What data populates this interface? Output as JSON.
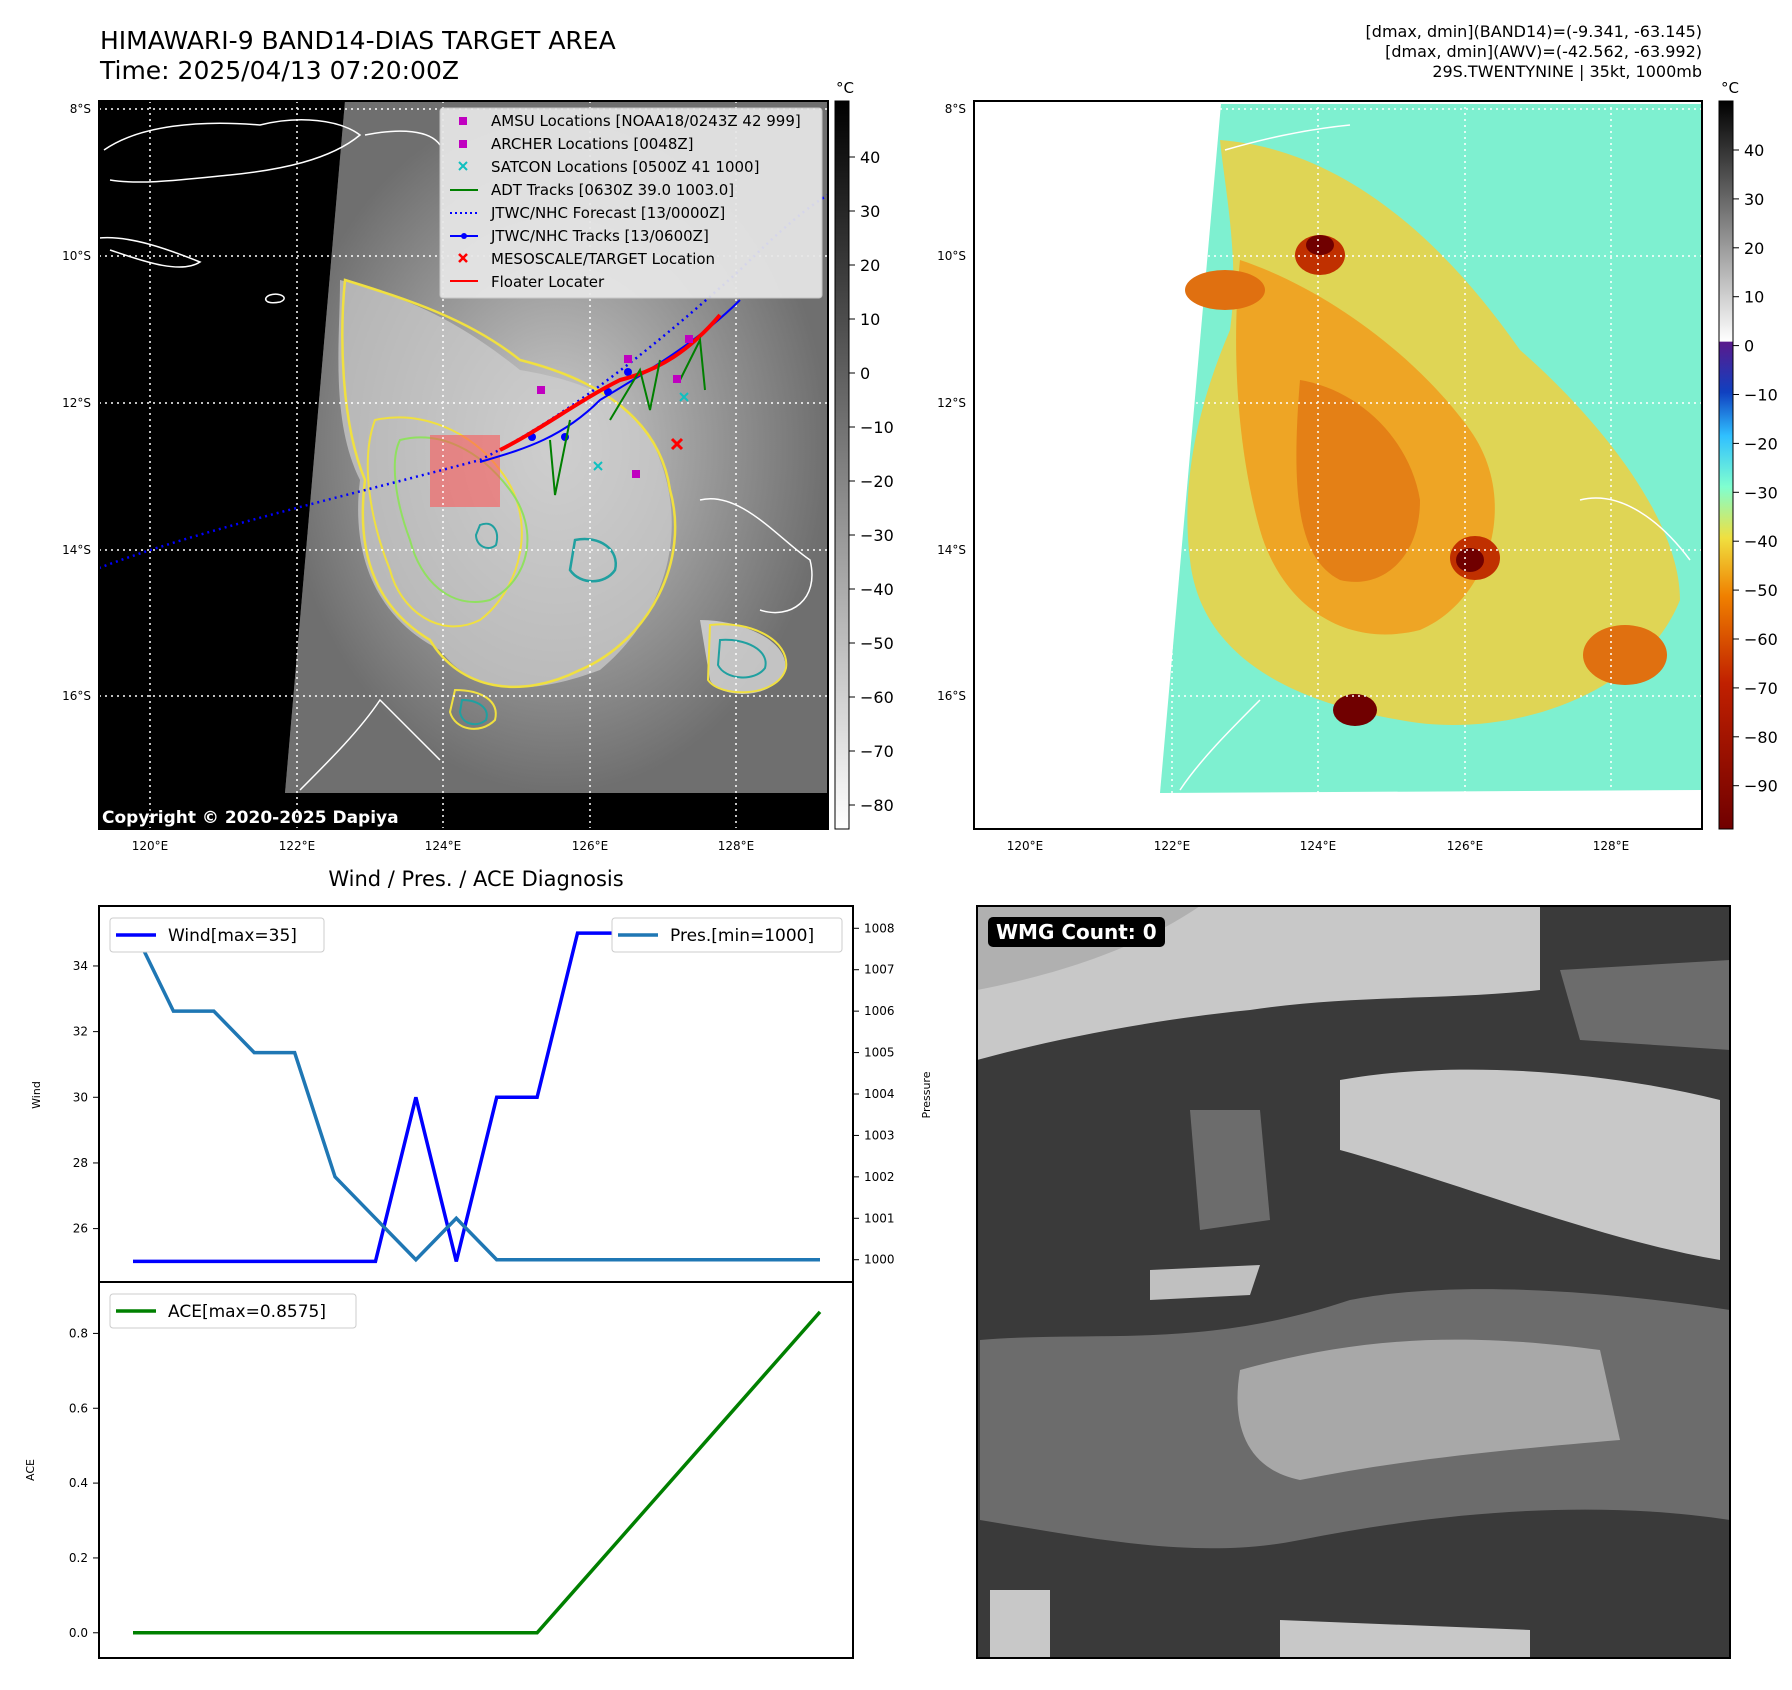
{
  "header": {
    "title_line1": "HIMAWARI-9 BAND14-DIAS TARGET AREA",
    "title_line2": "Time: 2025/04/13 07:20:00Z",
    "stats_line1": "[dmax, dmin](BAND14)=(-9.341, -63.145)",
    "stats_line2": "[dmax, dmin](AWV)=(-42.562, -63.992)",
    "stats_line3": "29S.TWENTYNINE | 35kt, 1000mb"
  },
  "map": {
    "lat_labels": [
      "8°S",
      "10°S",
      "12°S",
      "14°S",
      "16°S"
    ],
    "lon_labels": [
      "120°E",
      "122°E",
      "124°E",
      "126°E",
      "128°E"
    ],
    "copyright": "Copyright © 2020-2025 Dapiya",
    "colorbar_unit": "°C",
    "colorbar_left_ticks": [
      "40",
      "30",
      "20",
      "10",
      "0",
      "−10",
      "−20",
      "−30",
      "−40",
      "−50",
      "−60",
      "−70",
      "−80"
    ],
    "colorbar_right_ticks": [
      "40",
      "30",
      "20",
      "10",
      "0",
      "−10",
      "−20",
      "−30",
      "−40",
      "−50",
      "−60",
      "−70",
      "−80",
      "−90"
    ],
    "legend": [
      {
        "label": "AMSU Locations [NOAA18/0243Z 42 999]",
        "color": "#c000c0",
        "marker": "square"
      },
      {
        "label": "ARCHER Locations [0048Z]",
        "color": "#c000c0",
        "marker": "square"
      },
      {
        "label": "SATCON Locations [0500Z 41 1000]",
        "color": "#10c0c0",
        "marker": "x"
      },
      {
        "label": "ADT Tracks [0630Z 39.0 1003.0]",
        "color": "#008000",
        "marker": "line"
      },
      {
        "label": "JTWC/NHC Forecast [13/0000Z]",
        "color": "#0000ff",
        "marker": "dotted"
      },
      {
        "label": "JTWC/NHC Tracks [13/0600Z]",
        "color": "#0000ff",
        "marker": "line-dot"
      },
      {
        "label": "MESOSCALE/TARGET Location",
        "color": "#ff0000",
        "marker": "x"
      },
      {
        "label": "Floater Locater",
        "color": "#ff0000",
        "marker": "line"
      }
    ]
  },
  "diagnosis": {
    "title": "Wind / Pres. / ACE Diagnosis",
    "wmg_label": "WMG Count: 0"
  },
  "chart_data": [
    {
      "type": "line",
      "title": "Wind / Pres. / ACE Diagnosis",
      "ylabel": "Wind",
      "y2label": "Pressure",
      "ylim": [
        24.8,
        35.4
      ],
      "y2lim": [
        999.8,
        1008.2
      ],
      "yticks": [
        "26",
        "28",
        "30",
        "32",
        "34"
      ],
      "y2ticks": [
        "1000",
        "1001",
        "1002",
        "1003",
        "1004",
        "1005",
        "1006",
        "1007",
        "1008"
      ],
      "x": [
        0,
        1,
        2,
        3,
        4,
        5,
        6,
        7,
        8,
        9,
        10,
        11,
        12,
        13,
        14,
        15,
        16,
        17
      ],
      "series": [
        {
          "name": "Wind[max=35]",
          "color": "#0000ff",
          "axis": "left",
          "values": [
            25,
            25,
            25,
            25,
            25,
            25,
            25,
            30,
            25,
            30,
            30,
            35,
            35,
            35,
            35,
            35,
            35,
            35
          ]
        },
        {
          "name": "Pres.[min=1000]",
          "color": "#1f77b4",
          "axis": "right",
          "values": [
            1008,
            1006,
            1006,
            1005,
            1005,
            1002,
            1001,
            1000,
            1001,
            1000,
            1000,
            1000,
            1000,
            1000,
            1000,
            1000,
            1000,
            1000
          ]
        }
      ]
    },
    {
      "type": "line",
      "ylabel": "ACE",
      "ylim": [
        -0.03,
        0.9
      ],
      "yticks": [
        "0.0",
        "0.2",
        "0.4",
        "0.6",
        "0.8"
      ],
      "x": [
        0,
        1,
        2,
        3,
        4,
        5,
        6,
        7,
        8,
        9,
        10,
        11,
        12,
        13,
        14,
        15,
        16,
        17
      ],
      "series": [
        {
          "name": "ACE[max=0.8575]",
          "color": "#008000",
          "values": [
            0,
            0,
            0,
            0,
            0,
            0,
            0,
            0,
            0,
            0,
            0,
            0.1225,
            0.245,
            0.3675,
            0.49,
            0.6125,
            0.735,
            0.8575
          ]
        }
      ]
    }
  ]
}
